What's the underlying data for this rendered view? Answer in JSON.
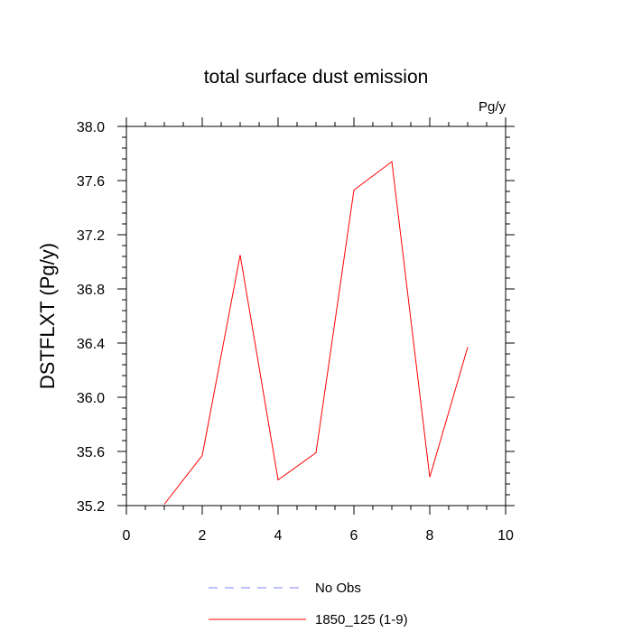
{
  "chart_data": {
    "type": "line",
    "title": "total surface dust emission",
    "units_label": "Pg/y",
    "ylabel": "DSTFLXT  (Pg/y)",
    "xlabel": "",
    "xlim": [
      0,
      10
    ],
    "ylim": [
      35.2,
      38.0
    ],
    "x_ticks": [
      0,
      2,
      4,
      6,
      8,
      10
    ],
    "x_tick_labels": [
      "0",
      "2",
      "4",
      "6",
      "8",
      "10"
    ],
    "y_ticks": [
      35.2,
      35.6,
      36.0,
      36.4,
      36.8,
      37.2,
      37.6,
      38.0
    ],
    "y_tick_labels": [
      "35.2",
      "35.6",
      "36.0",
      "36.4",
      "36.8",
      "37.2",
      "37.6",
      "38.0"
    ],
    "grid": false,
    "legend_position": "bottom",
    "series": [
      {
        "name": "1850_125 (1-9)",
        "color": "#ff0000",
        "dash": "solid",
        "x": [
          1,
          2,
          3,
          4,
          5,
          6,
          7,
          8,
          9
        ],
        "y": [
          35.21,
          35.57,
          37.05,
          35.39,
          35.59,
          37.53,
          37.74,
          35.41,
          36.37
        ]
      }
    ],
    "legend": [
      {
        "label": "No Obs",
        "color": "#8080ff",
        "dash": "dashed"
      },
      {
        "label": "1850_125 (1-9)",
        "color": "#ff0000",
        "dash": "solid"
      }
    ]
  }
}
